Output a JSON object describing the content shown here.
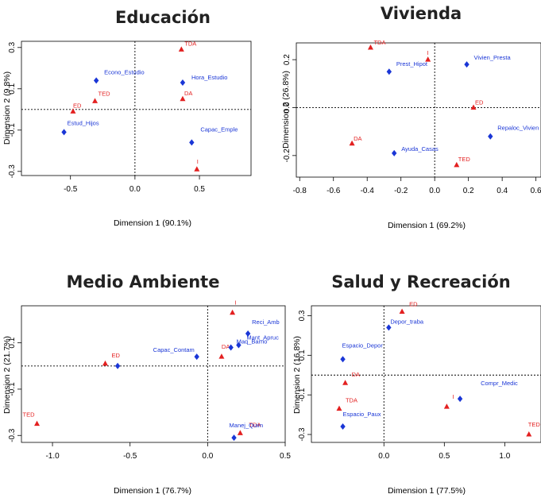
{
  "colors": {
    "row": "#e32020",
    "col": "#1a36d6"
  },
  "chart_data": [
    {
      "type": "scatter",
      "title": "Educación",
      "xlabel": "Dimension 1 (90.1%)",
      "ylabel": "Dimension 2 (9.8%)",
      "xlim": [
        -0.88,
        0.9
      ],
      "ylim": [
        -0.32,
        0.33
      ],
      "xticks": [
        -0.5,
        0.0,
        0.5
      ],
      "xtick_labels": [
        "-0.5",
        "0.0",
        "0.5"
      ],
      "yticks": [
        0.3,
        0.1,
        -0.1,
        -0.3
      ],
      "ytick_labels": [
        "0.3",
        "0.1",
        "-0.1",
        "-0.3"
      ],
      "series": [
        {
          "name": "",
          "marker": "triangle",
          "color": "#e32020",
          "points": [
            {
              "label": "TDA",
              "x": 0.36,
              "y": 0.29
            },
            {
              "label": "TED",
              "x": -0.31,
              "y": 0.04
            },
            {
              "label": "ED",
              "x": -0.48,
              "y": -0.01
            },
            {
              "label": "DA",
              "x": 0.37,
              "y": 0.05
            },
            {
              "label": "I",
              "x": 0.48,
              "y": -0.29
            }
          ]
        },
        {
          "name": "",
          "marker": "diamond",
          "color": "#1a36d6",
          "points": [
            {
              "label": "Econo_Estudio",
              "x": -0.3,
              "y": 0.14
            },
            {
              "label": "Hora_Estudio",
              "x": 0.37,
              "y": 0.13
            },
            {
              "label": "Estud_Hijos",
              "x": -0.55,
              "y": -0.11
            },
            {
              "label": "Capac_Emple",
              "x": 0.44,
              "y": -0.16
            }
          ]
        }
      ]
    },
    {
      "type": "scatter",
      "title": "Vivienda",
      "xlabel": "Dimension 1 (69.2%)",
      "ylabel": "Dimension 2 (26.8%)",
      "xlim": [
        -0.82,
        0.63
      ],
      "ylim": [
        -0.29,
        0.27
      ],
      "xticks": [
        -0.8,
        -0.6,
        -0.4,
        -0.2,
        0.0,
        0.2,
        0.4,
        0.6
      ],
      "xtick_labels": [
        "-0.8",
        "-0.6",
        "-0.4",
        "-0.2",
        "0.0",
        "0.2",
        "0.4",
        "0.6"
      ],
      "yticks": [
        0.2,
        0.0,
        -0.2
      ],
      "ytick_labels": [
        "0.2",
        "0.0",
        "-0.2"
      ],
      "series": [
        {
          "name": "",
          "marker": "triangle",
          "color": "#e32020",
          "points": [
            {
              "label": "TDA",
              "x": -0.38,
              "y": 0.25
            },
            {
              "label": "I",
              "x": -0.04,
              "y": 0.2
            },
            {
              "label": "ED",
              "x": 0.23,
              "y": 0.0
            },
            {
              "label": "DA",
              "x": -0.49,
              "y": -0.15
            },
            {
              "label": "TED",
              "x": 0.13,
              "y": -0.24
            }
          ]
        },
        {
          "name": "",
          "marker": "diamond",
          "color": "#1a36d6",
          "points": [
            {
              "label": "Prest_Hipot",
              "x": -0.27,
              "y": 0.15
            },
            {
              "label": "Vivien_Presta",
              "x": 0.19,
              "y": 0.18
            },
            {
              "label": "Repaloc_Vivien",
              "x": 0.33,
              "y": -0.12
            },
            {
              "label": "Ayuda_Casas",
              "x": -0.24,
              "y": -0.19
            }
          ]
        }
      ]
    },
    {
      "type": "scatter",
      "title": "Medio Ambiente",
      "xlabel": "Dimension 1 (76.7%)",
      "ylabel": "Dimension 2 (21.7%)",
      "xlim": [
        -1.2,
        0.5
      ],
      "ylim": [
        -0.33,
        0.26
      ],
      "xticks": [
        -1.0,
        -0.5,
        0.0,
        0.5
      ],
      "xtick_labels": [
        "-1.0",
        "-0.5",
        "0.0",
        "0.5"
      ],
      "yticks": [
        0.1,
        -0.1,
        -0.3
      ],
      "ytick_labels": [
        "0.1",
        "-0.1",
        "-0.3"
      ],
      "series": [
        {
          "name": "",
          "marker": "triangle",
          "color": "#e32020",
          "points": [
            {
              "label": "I",
              "x": 0.16,
              "y": 0.23
            },
            {
              "label": "ED",
              "x": -0.66,
              "y": 0.01
            },
            {
              "label": "DA",
              "x": 0.09,
              "y": 0.04
            },
            {
              "label": "TED",
              "x": -1.1,
              "y": -0.25
            },
            {
              "label": "TDA",
              "x": 0.21,
              "y": -0.29
            }
          ]
        },
        {
          "name": "",
          "marker": "diamond",
          "color": "#1a36d6",
          "points": [
            {
              "label": "Reci_Amb",
              "x": 0.26,
              "y": 0.14
            },
            {
              "label": "Mant_Apruc",
              "x": 0.2,
              "y": 0.09
            },
            {
              "label": "Capac_Contam",
              "x": -0.07,
              "y": 0.04
            },
            {
              "label": "Maq_Barrio",
              "x": 0.15,
              "y": 0.08
            },
            {
              "label": "Manej_Quim",
              "x": 0.17,
              "y": -0.31
            },
            {
              "label": "",
              "x": -0.58,
              "y": 0.0
            }
          ]
        }
      ]
    },
    {
      "type": "scatter",
      "title": "Salud y Recreación",
      "xlabel": "Dimension 1 (77.5%)",
      "ylabel": "Dimension 2 (16.8%)",
      "xlim": [
        -0.6,
        1.3
      ],
      "ylim": [
        -0.34,
        0.35
      ],
      "xticks": [
        0.0,
        0.5,
        1.0
      ],
      "xtick_labels": [
        "0.0",
        "0.5",
        "1.0"
      ],
      "yticks": [
        0.3,
        0.1,
        -0.1,
        -0.3
      ],
      "ytick_labels": [
        "0.3",
        "0.1",
        "-0.1",
        "-0.3"
      ],
      "series": [
        {
          "name": "",
          "marker": "triangle",
          "color": "#e32020",
          "points": [
            {
              "label": "ED",
              "x": 0.15,
              "y": 0.32
            },
            {
              "label": "DA",
              "x": -0.32,
              "y": -0.04
            },
            {
              "label": "TDA",
              "x": -0.37,
              "y": -0.17
            },
            {
              "label": "I",
              "x": 0.52,
              "y": -0.16
            },
            {
              "label": "TED",
              "x": 1.2,
              "y": -0.3
            }
          ]
        },
        {
          "name": "",
          "marker": "diamond",
          "color": "#1a36d6",
          "points": [
            {
              "label": "Depor_traba",
              "x": 0.04,
              "y": 0.24
            },
            {
              "label": "Espacio_Depor",
              "x": -0.34,
              "y": 0.08
            },
            {
              "label": "Compr_Medic",
              "x": 0.63,
              "y": -0.12
            },
            {
              "label": "Espacio_Paux",
              "x": -0.34,
              "y": -0.26
            }
          ]
        }
      ]
    }
  ]
}
